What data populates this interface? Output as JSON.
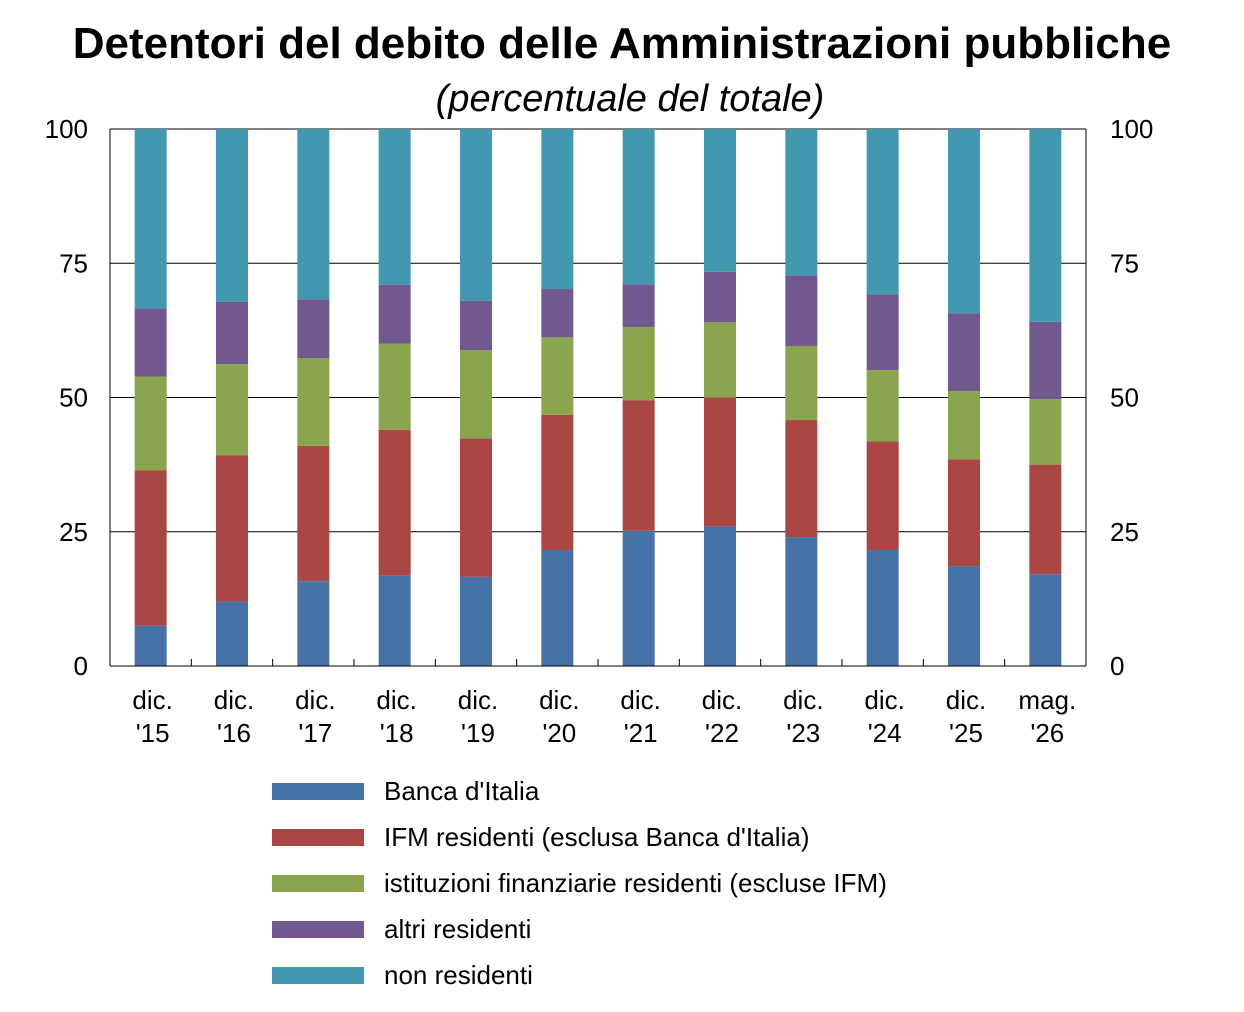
{
  "title": "Detentori del debito delle Amministrazioni pubbliche",
  "subtitle": "(percentuale del totale)",
  "chart_data": {
    "type": "bar",
    "stacked": true,
    "title": "Detentori del debito delle Amministrazioni pubbliche",
    "subtitle": "(percentuale del totale)",
    "categories": [
      [
        "dic.",
        "'15"
      ],
      [
        "dic.",
        "'16"
      ],
      [
        "dic.",
        "'17"
      ],
      [
        "dic.",
        "'18"
      ],
      [
        "dic.",
        "'19"
      ],
      [
        "dic.",
        "'20"
      ],
      [
        "dic.",
        "'21"
      ],
      [
        "dic.",
        "'22"
      ],
      [
        "dic.",
        "'23"
      ],
      [
        "dic.",
        "'24"
      ],
      [
        "dic.",
        "'25"
      ],
      [
        "mag.",
        "'26"
      ]
    ],
    "ylim": [
      0,
      100
    ],
    "yticks": [
      0,
      25,
      50,
      75,
      100
    ],
    "grid": true,
    "axes": "left-and-right",
    "legend_position": "bottom",
    "series": [
      {
        "name": "Banca d'Italia",
        "color": "#4672a8",
        "values": [
          7.5,
          12,
          15.8,
          16.8,
          16.6,
          21.6,
          25.2,
          26,
          24,
          21.6,
          18.6,
          17.1
        ]
      },
      {
        "name": "IFM residenti (esclusa Banca d'Italia)",
        "color": "#aa4643",
        "values": [
          28.9,
          27.2,
          25.2,
          27.2,
          25.8,
          25.2,
          24.3,
          24,
          21.8,
          20.2,
          19.9,
          20.4
        ]
      },
      {
        "name": "istituzioni finanziarie residenti (escluse IFM)",
        "color": "#89a54e",
        "values": [
          17.5,
          17,
          16.3,
          16,
          16.4,
          14.4,
          13.6,
          14,
          13.8,
          13.3,
          12.7,
          12.2
        ]
      },
      {
        "name": "altri residenti",
        "color": "#71588f",
        "values": [
          12.7,
          11.6,
          11,
          11,
          9.2,
          9,
          8,
          9.4,
          13.1,
          14.1,
          14.5,
          14.4
        ]
      },
      {
        "name": "non residenti",
        "color": "#4198af",
        "values": [
          33.4,
          32.2,
          31.7,
          29,
          32,
          29.8,
          28.9,
          26.6,
          27.3,
          30.8,
          34.3,
          35.9
        ]
      }
    ]
  }
}
